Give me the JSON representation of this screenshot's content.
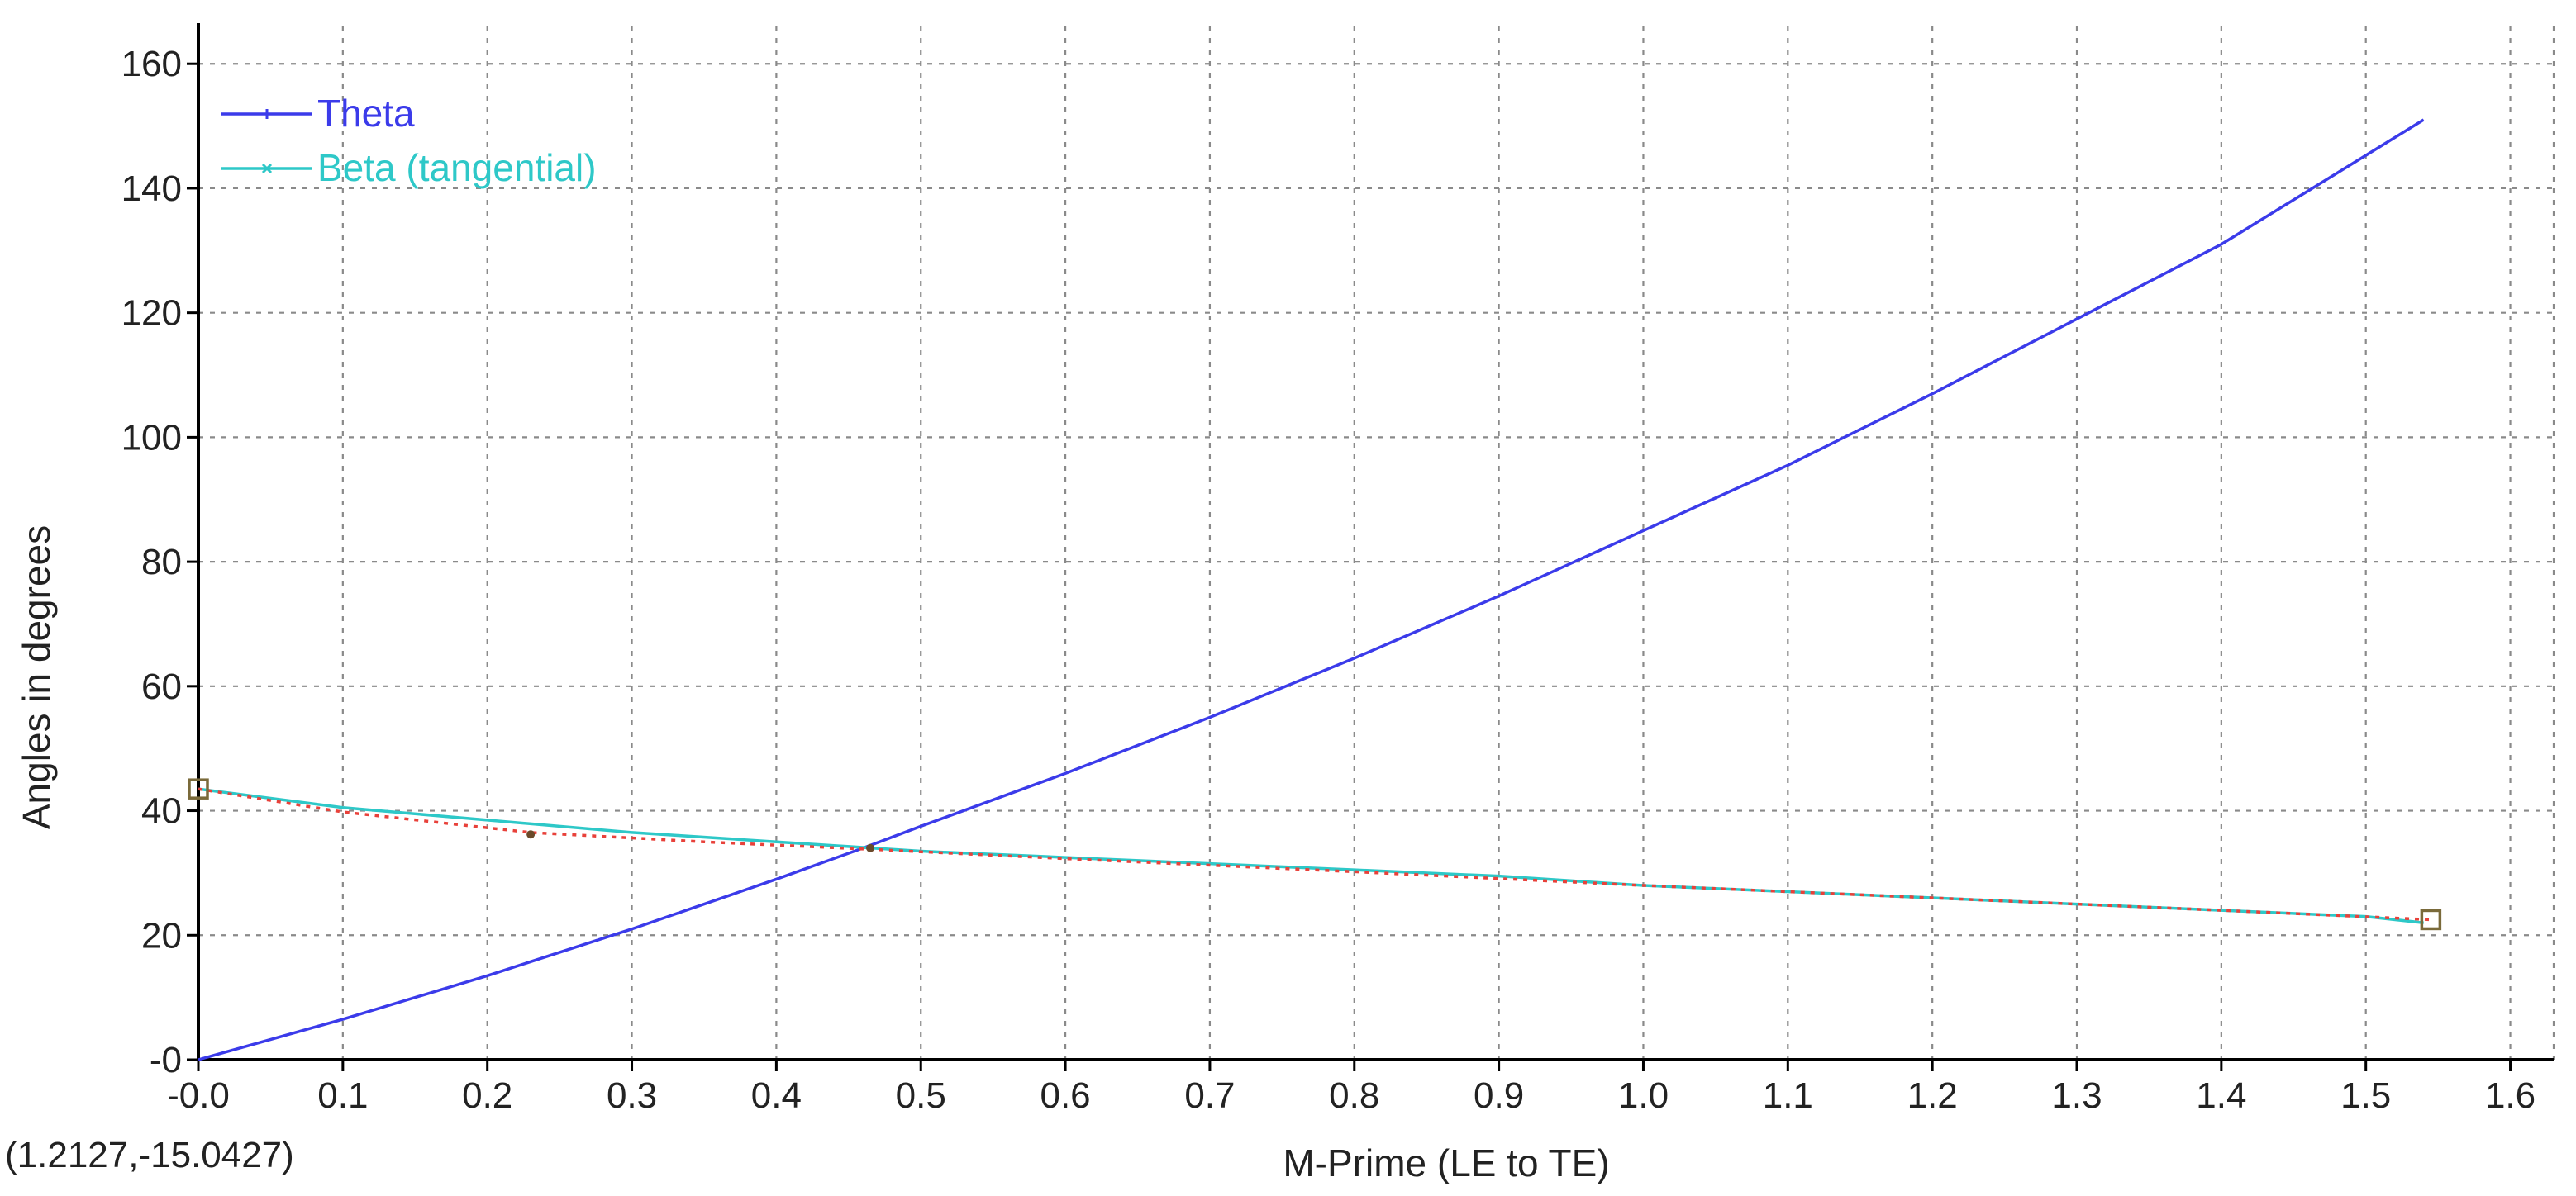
{
  "coordinate_readout": "(1.2127,-15.0427)",
  "chart_data": {
    "type": "line",
    "title": "",
    "xlabel": "M-Prime (LE to TE)",
    "ylabel": "Angles in degrees",
    "xlim": [
      0,
      1.63
    ],
    "ylim": [
      0,
      166
    ],
    "grid": true,
    "legend_position": "top-left",
    "x_ticks": [
      0.0,
      0.1,
      0.2,
      0.3,
      0.4,
      0.5,
      0.6,
      0.7,
      0.8,
      0.9,
      1.0,
      1.1,
      1.2,
      1.3,
      1.4,
      1.5,
      1.6
    ],
    "x_tick_labels": [
      "-0.0",
      "0.1",
      "0.2",
      "0.3",
      "0.4",
      "0.5",
      "0.6",
      "0.7",
      "0.8",
      "0.9",
      "1.0",
      "1.1",
      "1.2",
      "1.3",
      "1.4",
      "1.5",
      "1.6"
    ],
    "y_ticks": [
      0,
      20,
      40,
      60,
      80,
      100,
      120,
      140,
      160
    ],
    "y_tick_labels": [
      "-0",
      "20",
      "40",
      "60",
      "80",
      "100",
      "120",
      "140",
      "160"
    ],
    "series": [
      {
        "name": "Theta",
        "color": "#3b3bea",
        "style": "solid",
        "marker": "plus",
        "x": [
          0.0,
          0.1,
          0.2,
          0.3,
          0.4,
          0.46,
          0.5,
          0.6,
          0.7,
          0.8,
          0.9,
          1.0,
          1.1,
          1.2,
          1.3,
          1.4,
          1.54
        ],
        "y": [
          0,
          6.5,
          13.5,
          21,
          29,
          34,
          37.5,
          46,
          55,
          64.5,
          74.5,
          85,
          95.5,
          107,
          119,
          131,
          151
        ]
      },
      {
        "name": "Beta (tangential)",
        "color": "#2ec8c8",
        "style": "solid",
        "marker": "x",
        "x": [
          0.0,
          0.1,
          0.2,
          0.3,
          0.4,
          0.5,
          0.6,
          0.7,
          0.8,
          0.9,
          1.0,
          1.1,
          1.2,
          1.3,
          1.4,
          1.5,
          1.54
        ],
        "y": [
          43.5,
          40.5,
          38.5,
          36.5,
          35,
          33.5,
          32.5,
          31.5,
          30.5,
          29.5,
          28,
          27,
          26,
          25,
          24,
          23,
          22
        ]
      }
    ],
    "control_curve": {
      "color": "#e8413a",
      "style": "dotted",
      "x": [
        0.0,
        0.1,
        0.23,
        0.35,
        0.465,
        0.6,
        0.8,
        1.0,
        1.2,
        1.4,
        1.545
      ],
      "y": [
        43.5,
        39.8,
        36.5,
        35,
        33.8,
        32.3,
        30.2,
        28,
        26,
        24,
        22.5
      ]
    },
    "control_points": [
      {
        "x": 0.0,
        "y": 43.5,
        "shape": "square"
      },
      {
        "x": 0.23,
        "y": 36.2,
        "shape": "dot"
      },
      {
        "x": 0.465,
        "y": 34,
        "shape": "dot"
      },
      {
        "x": 1.545,
        "y": 22.5,
        "shape": "square"
      }
    ]
  }
}
